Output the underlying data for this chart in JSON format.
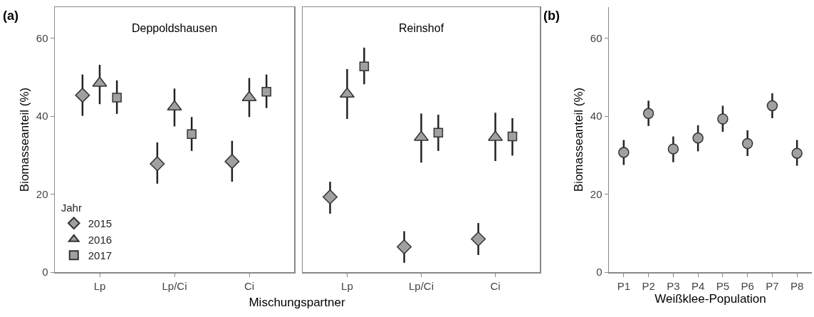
{
  "chart_data": [
    {
      "type": "scatter",
      "title": "Deppoldshausen",
      "ylabel": "Biomasseanteil (%)",
      "xlabel": "Mischungspartner",
      "legend_title": "Jahr",
      "legend": "bottom left",
      "annotations": [
        "(a)"
      ],
      "categories": [
        "Lp",
        "Lp/Ci",
        "Ci"
      ],
      "ylim": [
        0,
        68
      ],
      "yticks": [
        0,
        20,
        40,
        60
      ],
      "grid": false,
      "series": [
        {
          "name": "2015",
          "color": "#a0a0a0",
          "marker": "diamond",
          "values": [
            45.4,
            27.8,
            28.4
          ],
          "errors": [
            [
              40.1,
              50.7
            ],
            [
              22.7,
              33.3
            ],
            [
              23.2,
              33.7
            ]
          ]
        },
        {
          "name": "2016",
          "color": "#a0a0a0",
          "marker": "triangle",
          "values": [
            48.5,
            42.4,
            44.8
          ],
          "errors": [
            [
              43.1,
              53.2
            ],
            [
              37.4,
              47.1
            ],
            [
              39.8,
              49.8
            ]
          ]
        },
        {
          "name": "2017",
          "color": "#a0a0a0",
          "marker": "square",
          "values": [
            44.8,
            35.4,
            46.3
          ],
          "errors": [
            [
              40.6,
              49.2
            ],
            [
              31.1,
              39.8
            ],
            [
              42.1,
              50.7
            ]
          ]
        }
      ]
    },
    {
      "type": "scatter",
      "title": "Reinshof",
      "categories": [
        "Lp",
        "Lp/Ci",
        "Ci"
      ],
      "ylim": [
        0,
        68
      ],
      "yticks": [
        0,
        20,
        40,
        60
      ],
      "tick_labels": "x",
      "grid": false,
      "series": [
        {
          "color": "#a0a0a0",
          "marker": "diamond",
          "values": [
            19.3,
            6.5,
            8.5
          ],
          "errors": [
            [
              15.0,
              23.2
            ],
            [
              2.4,
              10.5
            ],
            [
              4.4,
              12.6
            ]
          ]
        },
        {
          "color": "#a0a0a0",
          "marker": "triangle",
          "values": [
            45.7,
            34.6,
            34.6
          ],
          "errors": [
            [
              39.3,
              52.1
            ],
            [
              28.1,
              40.7
            ],
            [
              28.5,
              40.9
            ]
          ]
        },
        {
          "color": "#a0a0a0",
          "marker": "square",
          "values": [
            52.8,
            35.8,
            34.8
          ],
          "errors": [
            [
              48.2,
              57.6
            ],
            [
              31.1,
              40.4
            ],
            [
              29.9,
              39.5
            ]
          ]
        }
      ]
    },
    {
      "type": "scatter",
      "ylabel": "Biomasseanteil (%)",
      "xlabel": "Weißklee-Population",
      "annotations": [
        "(b)"
      ],
      "categories": [
        "P1",
        "P2",
        "P3",
        "P4",
        "P5",
        "P6",
        "P7",
        "P8"
      ],
      "ylim": [
        0,
        68
      ],
      "yticks": [
        0,
        20,
        40,
        60
      ],
      "grid": false,
      "marker": "circle",
      "color": "#a0a0a0",
      "values": [
        30.7,
        40.7,
        31.6,
        34.4,
        39.3,
        33.0,
        42.7,
        30.5
      ],
      "errors": [
        [
          27.5,
          33.9
        ],
        [
          37.5,
          44.0
        ],
        [
          28.2,
          34.8
        ],
        [
          31.0,
          37.7
        ],
        [
          36.0,
          42.7
        ],
        [
          29.8,
          36.4
        ],
        [
          39.5,
          45.9
        ],
        [
          27.3,
          33.9
        ]
      ]
    }
  ]
}
